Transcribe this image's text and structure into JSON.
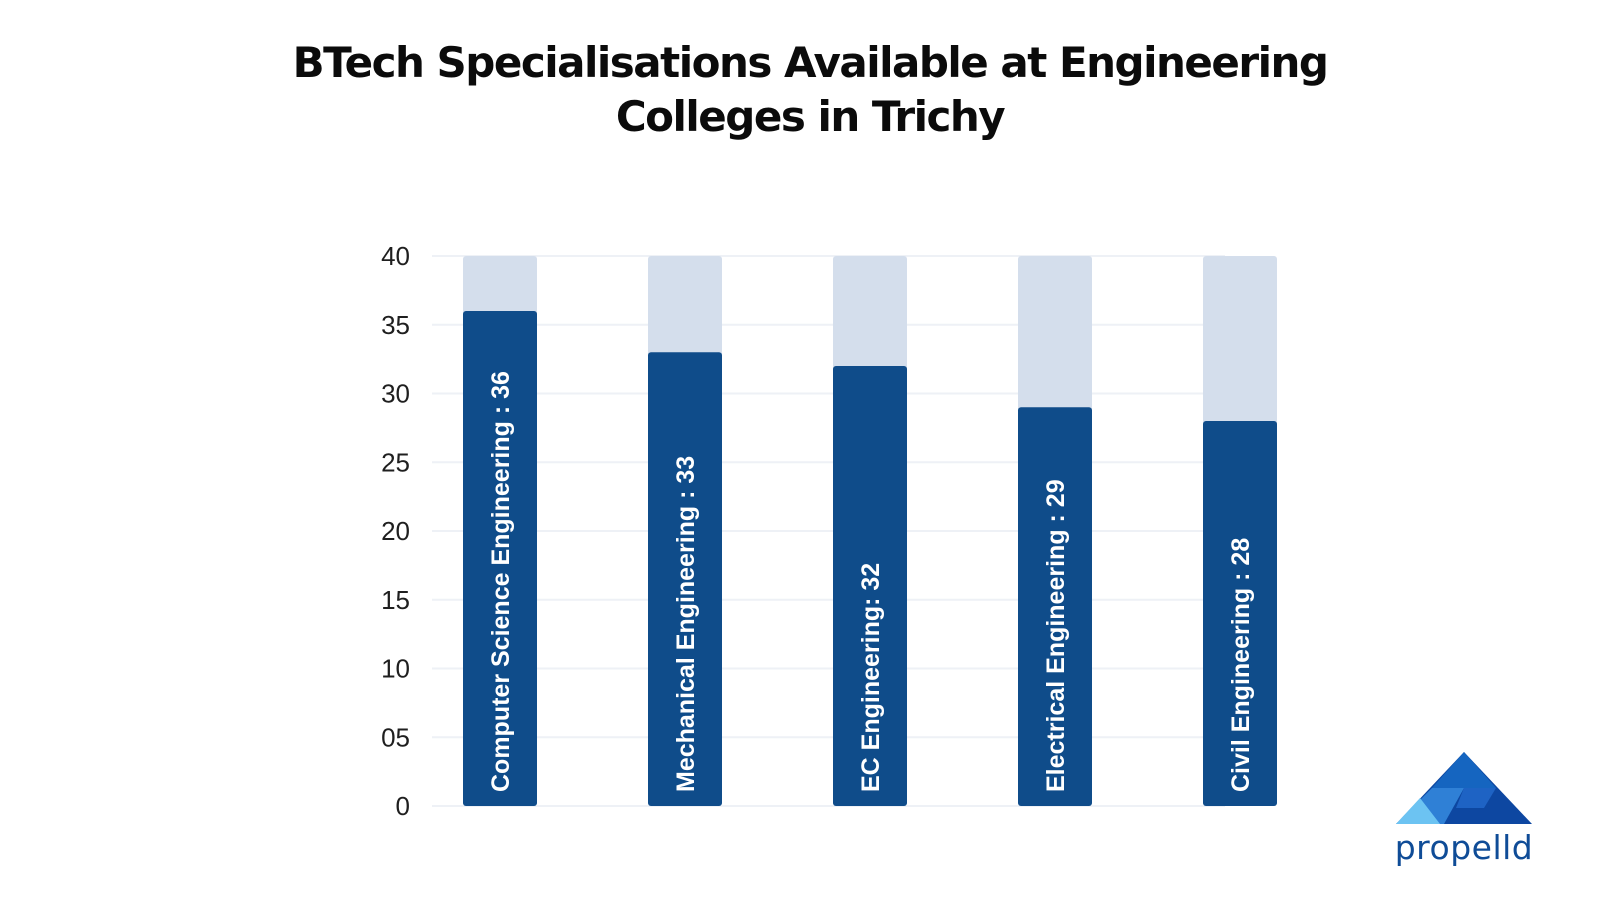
{
  "chart_data": {
    "type": "bar",
    "title": "BTech Specialisations Available at Engineering Colleges in Trichy",
    "categories": [
      "Computer Science Engineering",
      "Mechanical Engineering",
      "EC Engineering",
      "Electrical Engineering",
      "Civil Engineering"
    ],
    "values": [
      36,
      33,
      32,
      29,
      28
    ],
    "bar_labels": [
      "Computer Science Engineering : 36",
      "Mechanical Engineering : 33",
      "EC Engineering: 32",
      "Electrical Engineering : 29",
      "Civil Engineering : 28"
    ],
    "ylim": [
      0,
      40
    ],
    "yticks": [
      0,
      5,
      10,
      15,
      20,
      25,
      30,
      35,
      40
    ],
    "ytick_labels": [
      "0",
      "05",
      "10",
      "15",
      "20",
      "25",
      "30",
      "35",
      "40"
    ],
    "xlabel": "",
    "ylabel": "",
    "grid": true,
    "legend": "none",
    "colors": {
      "bar": "#0f4c8a",
      "track": "#d4deec",
      "grid": "#eef1f6"
    }
  },
  "logo": {
    "text": "propelld",
    "icon": "propelld-triangle-logo-icon"
  }
}
